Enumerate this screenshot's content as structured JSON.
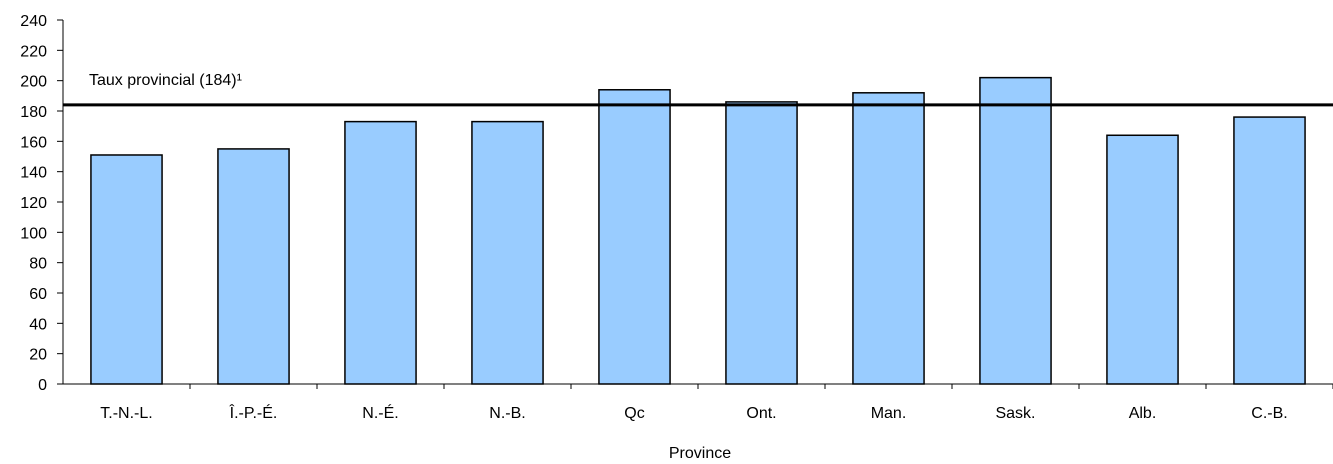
{
  "chart_data": {
    "type": "bar",
    "categories": [
      "T.-N.-L.",
      "Î.-P.-É.",
      "N.-É.",
      "N.-B.",
      "Qc",
      "Ont.",
      "Man.",
      "Sask.",
      "Alb.",
      "C.-B."
    ],
    "values": [
      151,
      155,
      173,
      173,
      194,
      186,
      192,
      202,
      164,
      176
    ],
    "xlabel": "Province",
    "ylabel": "",
    "ylim": [
      0,
      240
    ],
    "yticks": [
      0,
      20,
      40,
      60,
      80,
      100,
      120,
      140,
      160,
      180,
      200,
      220,
      240
    ],
    "reference_line": {
      "value": 184,
      "label": "Taux provincial (184)¹"
    },
    "grid": false,
    "legend": "none",
    "colors": {
      "bar_fill": "#99ccff",
      "bar_stroke": "#000000",
      "reference_line": "#000000"
    }
  }
}
